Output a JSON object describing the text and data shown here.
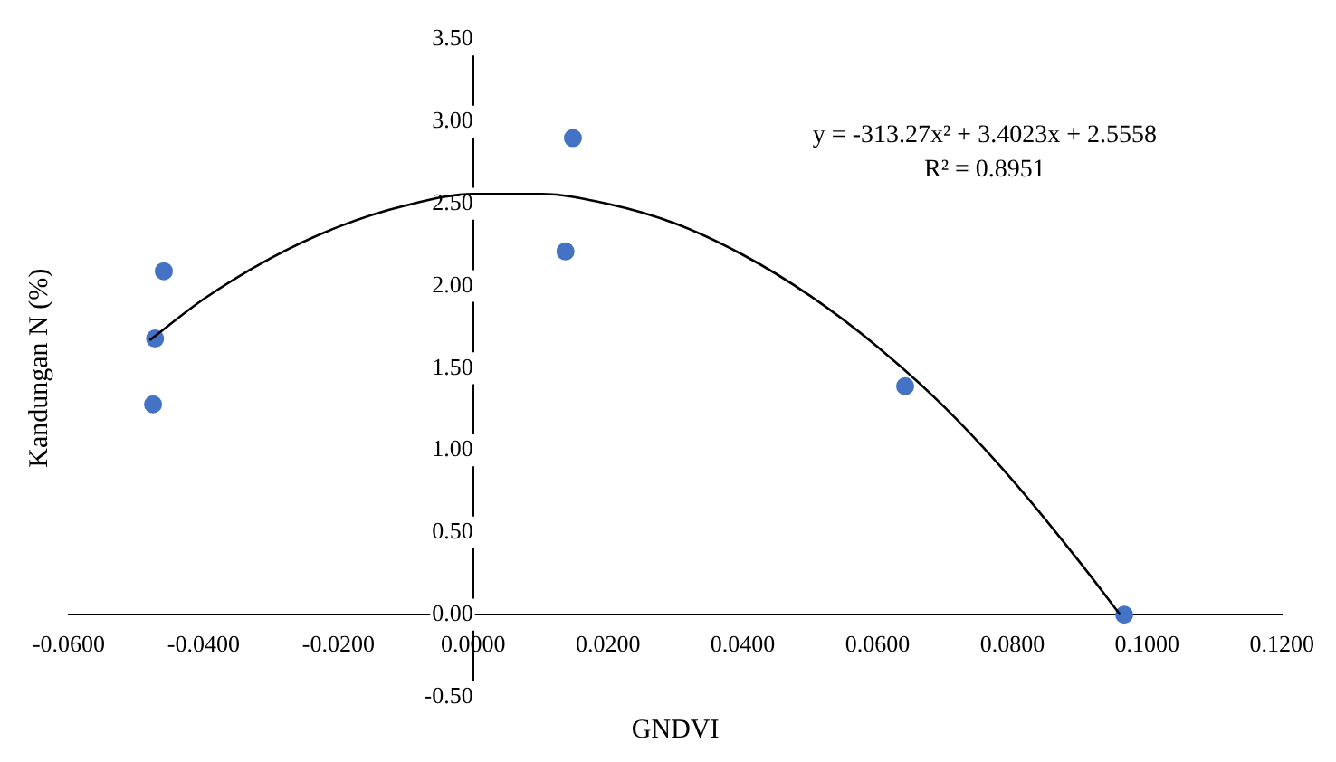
{
  "chart_data": {
    "type": "scatter",
    "xlabel": "GNDVI",
    "ylabel": "Kandungan N (%)",
    "series": [
      {
        "type": "scatter",
        "color": "#4472c4",
        "marker": "circle",
        "x": [
          -0.0459,
          -0.0472,
          -0.0475,
          0.0148,
          0.0137,
          0.0641,
          0.0966
        ],
        "values": [
          2.09,
          1.68,
          1.28,
          2.9,
          2.21,
          1.39,
          0.0
        ]
      },
      {
        "type": "line",
        "color": "#000000",
        "marker": "none",
        "line_style": "solid",
        "x": [
          -0.048,
          -0.04,
          -0.03,
          -0.02,
          -0.01,
          0,
          0.01,
          0.02,
          0.03,
          0.04,
          0.05,
          0.06,
          0.07,
          0.08,
          0.09,
          0.096
        ],
        "values": [
          1.67,
          1.92,
          2.17,
          2.36,
          2.49,
          2.56,
          2.56,
          2.5,
          2.38,
          2.19,
          1.94,
          1.63,
          1.26,
          0.82,
          0.32,
          0.0
        ]
      }
    ],
    "annotations": [
      "y = -313.27x² + 3.4023x + 2.5558",
      "R² = 0.8951"
    ],
    "xlim": [
      -0.06,
      0.12
    ],
    "xticks": [
      {
        "value": -0.06,
        "label": "-0.0600"
      },
      {
        "value": -0.04,
        "label": "-0.0400"
      },
      {
        "value": -0.02,
        "label": "-0.0200"
      },
      {
        "value": 0,
        "label": "0.0000"
      },
      {
        "value": 0.02,
        "label": "0.0200"
      },
      {
        "value": 0.04,
        "label": "0.0400"
      },
      {
        "value": 0.06,
        "label": "0.0600"
      },
      {
        "value": 0.08,
        "label": "0.0800"
      },
      {
        "value": 0.1,
        "label": "0.1000"
      },
      {
        "value": 0.12,
        "label": "0.1200"
      }
    ],
    "ylim": [
      -0.5,
      3.5
    ],
    "yticks": [
      {
        "value": -0.5,
        "label": "-0.50"
      },
      {
        "value": 0,
        "label": "0.00"
      },
      {
        "value": 0.5,
        "label": "0.50"
      },
      {
        "value": 1,
        "label": "1.00"
      },
      {
        "value": 1.5,
        "label": "1.50"
      },
      {
        "value": 2,
        "label": "2.00"
      },
      {
        "value": 2.5,
        "label": "2.50"
      },
      {
        "value": 3,
        "label": "3.00"
      },
      {
        "value": 3.5,
        "label": "3.50"
      }
    ],
    "grid": false,
    "legend": false
  }
}
